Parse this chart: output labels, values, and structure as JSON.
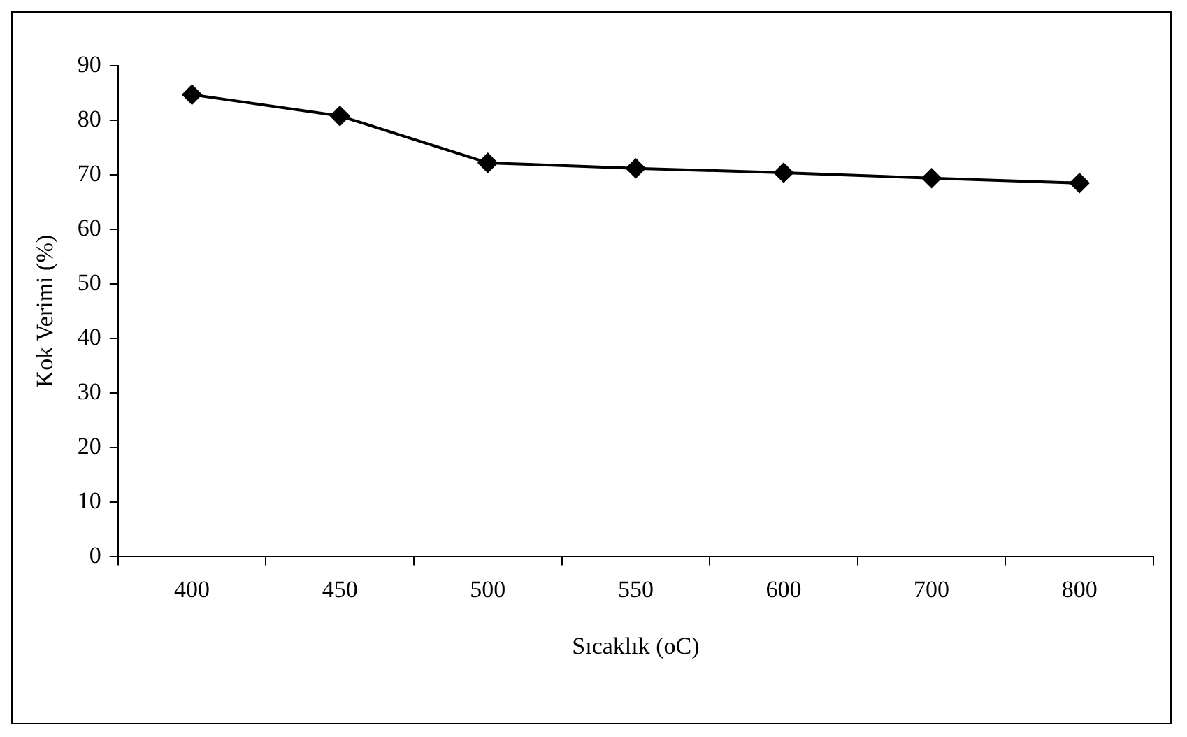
{
  "chart_data": {
    "type": "line",
    "xlabel": "Sıcaklık (oC)",
    "ylabel": "Kok Verimi (%)",
    "categories": [
      "400",
      "450",
      "500",
      "550",
      "600",
      "700",
      "800"
    ],
    "series": [
      {
        "color": "#000000",
        "values": [
          84.7,
          80.8,
          72.2,
          71.2,
          70.4,
          69.4,
          68.5
        ]
      }
    ],
    "ylim": [
      0,
      90
    ],
    "yticks": [
      0,
      10,
      20,
      30,
      40,
      50,
      60,
      70,
      80,
      90
    ],
    "grid": false,
    "legend": false,
    "marker": "diamond",
    "line_style": "solid"
  }
}
